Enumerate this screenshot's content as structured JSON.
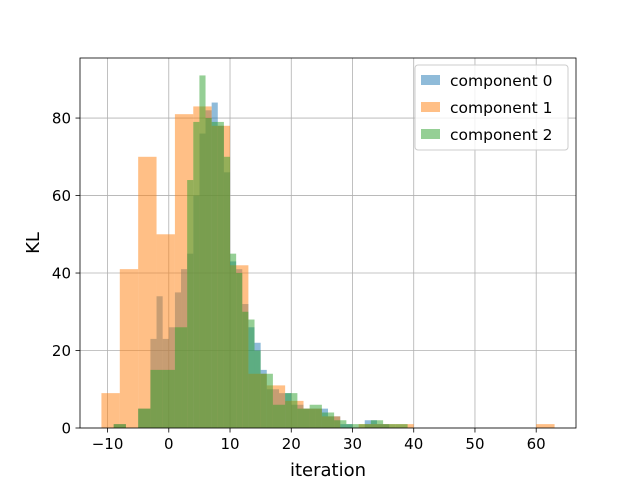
{
  "chart_data": {
    "type": "histogram",
    "xlabel": "iteration",
    "ylabel": "KL",
    "xlim": [
      -14.5,
      66.5
    ],
    "ylim": [
      0,
      95.5
    ],
    "xticks": [
      -10,
      0,
      10,
      20,
      30,
      40,
      50,
      60
    ],
    "yticks": [
      0,
      20,
      40,
      60,
      80
    ],
    "grid": true,
    "legend_position": "top-right",
    "series": [
      {
        "name": "component 0",
        "color": "#1f77b4",
        "alpha": 0.5,
        "bins": [
          [
            -9.0,
            -7.0,
            1
          ],
          [
            -7.0,
            -5.0,
            0
          ],
          [
            -5.0,
            -3.0,
            5
          ],
          [
            -3.0,
            -2.0,
            23
          ],
          [
            -2.0,
            -1.0,
            34
          ],
          [
            -1.0,
            0.0,
            23
          ],
          [
            0.0,
            1.0,
            26
          ],
          [
            1.0,
            2.0,
            35
          ],
          [
            2.0,
            3.0,
            41
          ],
          [
            3.0,
            4.0,
            45
          ],
          [
            4.0,
            5.0,
            60
          ],
          [
            5.0,
            6.0,
            76
          ],
          [
            6.0,
            7.0,
            82
          ],
          [
            7.0,
            8.0,
            84
          ],
          [
            8.0,
            9.0,
            78
          ],
          [
            9.0,
            10.0,
            66
          ],
          [
            10.0,
            11.0,
            43
          ],
          [
            11.0,
            12.0,
            41
          ],
          [
            12.0,
            13.0,
            32
          ],
          [
            13.0,
            14.0,
            26
          ],
          [
            14.0,
            15.0,
            22
          ],
          [
            15.0,
            16.0,
            15
          ],
          [
            16.0,
            18.0,
            10
          ],
          [
            18.0,
            20.0,
            9
          ],
          [
            20.0,
            22.0,
            6
          ],
          [
            22.0,
            24.0,
            5
          ],
          [
            24.0,
            26.0,
            5
          ],
          [
            26.0,
            28.0,
            3
          ],
          [
            28.0,
            30.0,
            1
          ],
          [
            30.0,
            32.0,
            0
          ],
          [
            32.0,
            34.0,
            2
          ],
          [
            34.0,
            36.0,
            1
          ]
        ]
      },
      {
        "name": "component 1",
        "color": "#ff7f0e",
        "alpha": 0.5,
        "bins": [
          [
            -11.0,
            -8.0,
            9
          ],
          [
            -8.0,
            -5.0,
            41
          ],
          [
            -5.0,
            -2.0,
            70
          ],
          [
            -2.0,
            1.0,
            50
          ],
          [
            1.0,
            4.0,
            81
          ],
          [
            4.0,
            7.0,
            83
          ],
          [
            7.0,
            10.0,
            78
          ],
          [
            10.0,
            13.0,
            42
          ],
          [
            13.0,
            16.0,
            14
          ],
          [
            16.0,
            19.0,
            11
          ],
          [
            19.0,
            22.0,
            7
          ],
          [
            22.0,
            25.0,
            5
          ],
          [
            25.0,
            28.0,
            3
          ],
          [
            28.0,
            31.0,
            0
          ],
          [
            31.0,
            34.0,
            1
          ],
          [
            34.0,
            37.0,
            1
          ],
          [
            37.0,
            40.0,
            1
          ],
          [
            40.0,
            60.0,
            0
          ],
          [
            60.0,
            63.0,
            1
          ]
        ]
      },
      {
        "name": "component 2",
        "color": "#2ca02c",
        "alpha": 0.5,
        "bins": [
          [
            -9.0,
            -7.0,
            1
          ],
          [
            -7.0,
            -5.0,
            0
          ],
          [
            -5.0,
            -3.0,
            5
          ],
          [
            -3.0,
            -1.0,
            15
          ],
          [
            -1.0,
            1.0,
            15
          ],
          [
            1.0,
            3.0,
            26
          ],
          [
            3.0,
            4.0,
            64
          ],
          [
            4.0,
            5.0,
            79
          ],
          [
            5.0,
            6.0,
            91
          ],
          [
            6.0,
            7.0,
            80
          ],
          [
            7.0,
            8.0,
            79
          ],
          [
            8.0,
            9.0,
            79
          ],
          [
            9.0,
            10.0,
            70
          ],
          [
            10.0,
            11.0,
            45
          ],
          [
            11.0,
            12.0,
            40
          ],
          [
            12.0,
            13.0,
            30
          ],
          [
            13.0,
            14.0,
            28
          ],
          [
            14.0,
            15.0,
            20
          ],
          [
            15.0,
            17.0,
            14
          ],
          [
            17.0,
            19.0,
            6
          ],
          [
            19.0,
            21.0,
            9
          ],
          [
            21.0,
            23.0,
            5
          ],
          [
            23.0,
            25.0,
            6
          ],
          [
            25.0,
            27.0,
            4
          ],
          [
            27.0,
            29.0,
            2
          ],
          [
            29.0,
            31.0,
            1
          ],
          [
            31.0,
            33.0,
            1
          ],
          [
            33.0,
            35.0,
            2
          ],
          [
            35.0,
            37.0,
            1
          ],
          [
            37.0,
            39.0,
            1
          ]
        ]
      }
    ]
  }
}
